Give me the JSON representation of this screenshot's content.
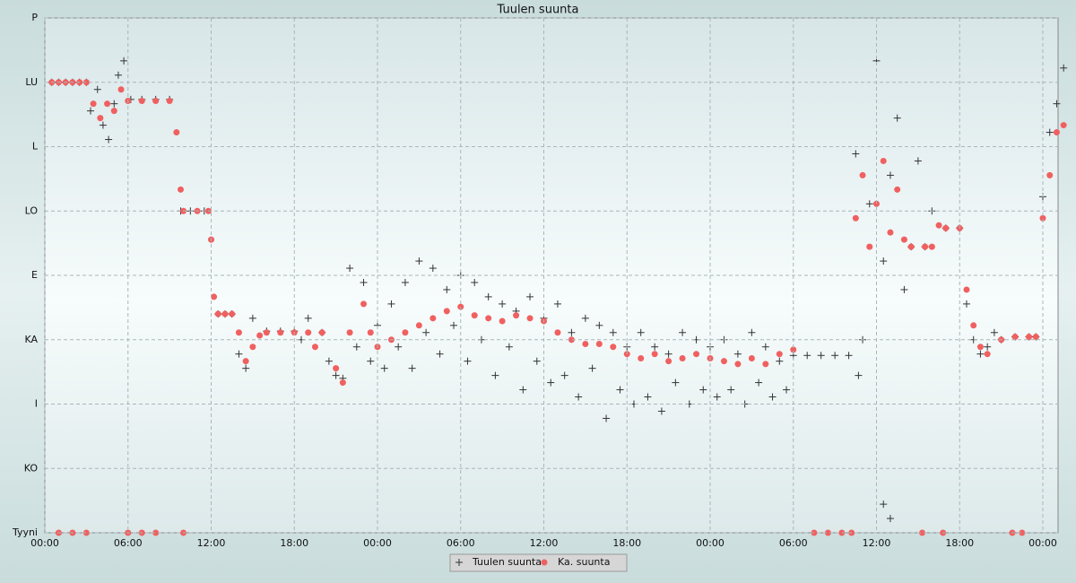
{
  "chart_data": {
    "type": "scatter",
    "title": "Tuulen suunta",
    "xlim": [
      0,
      73.1
    ],
    "xticks": [
      {
        "value": 0,
        "label": "00:00"
      },
      {
        "value": 6,
        "label": "06:00"
      },
      {
        "value": 12,
        "label": "12:00"
      },
      {
        "value": 18,
        "label": "18:00"
      },
      {
        "value": 24,
        "label": "00:00"
      },
      {
        "value": 30,
        "label": "06:00"
      },
      {
        "value": 36,
        "label": "12:00"
      },
      {
        "value": 42,
        "label": "18:00"
      },
      {
        "value": 48,
        "label": "00:00"
      },
      {
        "value": 54,
        "label": "06:00"
      },
      {
        "value": 60,
        "label": "12:00"
      },
      {
        "value": 66,
        "label": "18:00"
      },
      {
        "value": 72,
        "label": "00:00"
      }
    ],
    "ylim": [
      0,
      360
    ],
    "yticks": [
      {
        "value": 0,
        "label": "Tyyni"
      },
      {
        "value": 45,
        "label": "KO"
      },
      {
        "value": 90,
        "label": "I"
      },
      {
        "value": 135,
        "label": "KA"
      },
      {
        "value": 180,
        "label": "E"
      },
      {
        "value": 225,
        "label": "LO"
      },
      {
        "value": 270,
        "label": "L"
      },
      {
        "value": 315,
        "label": "LU"
      },
      {
        "value": 360,
        "label": "P"
      }
    ],
    "grid": true,
    "series": [
      {
        "name": "Tuulen suunta",
        "color": "#333333",
        "marker": "cross",
        "x": [
          0.5,
          1,
          1.5,
          2,
          2.5,
          3,
          3.3,
          3.8,
          4.2,
          4.6,
          5,
          5.3,
          5.7,
          6.2,
          7,
          8,
          9,
          9.8,
          10.5,
          11.5,
          12.5,
          13,
          13.5,
          14,
          14.5,
          15,
          16,
          17,
          18,
          18.5,
          19,
          20,
          20.5,
          21,
          21.5,
          22,
          22.5,
          23,
          23.5,
          24,
          24.5,
          25,
          25.5,
          26,
          26.5,
          27,
          27.5,
          28,
          28.5,
          29,
          29.5,
          30,
          30.5,
          31,
          31.5,
          32,
          32.5,
          33,
          33.5,
          34,
          34.5,
          35,
          35.5,
          36,
          36.5,
          37,
          37.5,
          38,
          38.5,
          39,
          39.5,
          40,
          40.5,
          41,
          41.5,
          42,
          42.5,
          43,
          43.5,
          44,
          44.5,
          45,
          45.5,
          46,
          46.5,
          47,
          47.5,
          48,
          48.5,
          49,
          49.5,
          50,
          50.5,
          51,
          51.5,
          52,
          52.5,
          53,
          53.5,
          54,
          55,
          56,
          57,
          58,
          58.5,
          59,
          59.5,
          60,
          60.5,
          61,
          61.5,
          62,
          62.5,
          63,
          63.5,
          64,
          65,
          66,
          66.5,
          67,
          67.5,
          68,
          68.5,
          69,
          70,
          71,
          71.5,
          72,
          72.5,
          73,
          73.5,
          58.7,
          60.5,
          61
        ],
        "values": [
          315,
          315,
          315,
          315,
          315,
          315,
          295,
          310,
          285,
          275,
          300,
          320,
          330,
          303,
          303,
          303,
          303,
          225,
          225,
          225,
          153,
          153,
          153,
          125,
          115,
          150,
          141,
          141,
          141,
          135,
          150,
          140,
          120,
          110,
          108,
          185,
          130,
          175,
          120,
          145,
          115,
          160,
          130,
          175,
          115,
          190,
          140,
          185,
          125,
          170,
          145,
          180,
          120,
          175,
          135,
          165,
          110,
          160,
          130,
          155,
          100,
          165,
          120,
          150,
          105,
          160,
          110,
          140,
          95,
          150,
          115,
          145,
          80,
          140,
          100,
          130,
          90,
          140,
          95,
          130,
          85,
          125,
          105,
          140,
          90,
          135,
          100,
          130,
          95,
          135,
          100,
          125,
          90,
          140,
          105,
          130,
          95,
          120,
          100,
          124,
          124,
          124,
          124,
          124,
          265,
          135,
          230,
          330,
          190,
          250,
          290,
          170,
          200,
          260,
          200,
          225,
          213,
          213,
          160,
          135,
          125,
          130,
          140,
          135,
          137,
          137,
          137,
          235,
          280,
          300,
          325,
          110,
          20,
          10
        ]
      },
      {
        "name": "Ka. suunta",
        "color": "#f06060",
        "marker": "dot",
        "x": [
          0.5,
          1,
          1.5,
          2,
          2.5,
          3,
          3.5,
          4,
          4.5,
          5,
          5.5,
          6,
          7,
          8,
          9,
          9.5,
          9.8,
          10,
          11,
          11.8,
          12,
          12.2,
          12.5,
          13,
          13.5,
          14,
          14.5,
          15,
          15.5,
          16,
          17,
          18,
          19,
          19.5,
          20,
          21,
          21.5,
          22,
          23,
          23.5,
          24,
          25,
          26,
          27,
          28,
          29,
          30,
          31,
          32,
          33,
          34,
          35,
          36,
          37,
          38,
          39,
          40,
          41,
          42,
          43,
          44,
          45,
          46,
          47,
          48,
          49,
          50,
          51,
          52,
          53,
          54,
          58.5,
          59,
          59.5,
          60,
          60.5,
          61,
          61.5,
          62,
          62.5,
          63.5,
          64,
          64.5,
          65,
          66,
          66.5,
          67,
          67.5,
          68,
          69,
          70,
          71,
          71.5,
          72,
          72.5,
          73,
          73.5,
          1,
          2,
          3,
          6,
          7,
          8,
          10,
          55.5,
          56.5,
          57.5,
          58.2,
          63.3,
          64.8,
          69.8,
          70.5
        ],
        "values": [
          315,
          315,
          315,
          315,
          315,
          315,
          300,
          290,
          300,
          295,
          310,
          302,
          302,
          302,
          302,
          280,
          240,
          225,
          225,
          225,
          205,
          165,
          153,
          153,
          153,
          140,
          120,
          130,
          138,
          140,
          140,
          140,
          140,
          130,
          140,
          115,
          105,
          140,
          160,
          140,
          130,
          135,
          140,
          145,
          150,
          155,
          158,
          152,
          150,
          148,
          152,
          150,
          148,
          140,
          135,
          132,
          132,
          130,
          125,
          122,
          125,
          120,
          122,
          125,
          122,
          120,
          118,
          122,
          118,
          125,
          128,
          220,
          250,
          200,
          230,
          260,
          210,
          240,
          205,
          200,
          200,
          200,
          215,
          213,
          213,
          170,
          145,
          130,
          125,
          135,
          137,
          137,
          137,
          220,
          250,
          280,
          285,
          0,
          0,
          0,
          0,
          0,
          0,
          0,
          0,
          0,
          0,
          0,
          0,
          0,
          0,
          0
        ]
      }
    ]
  }
}
